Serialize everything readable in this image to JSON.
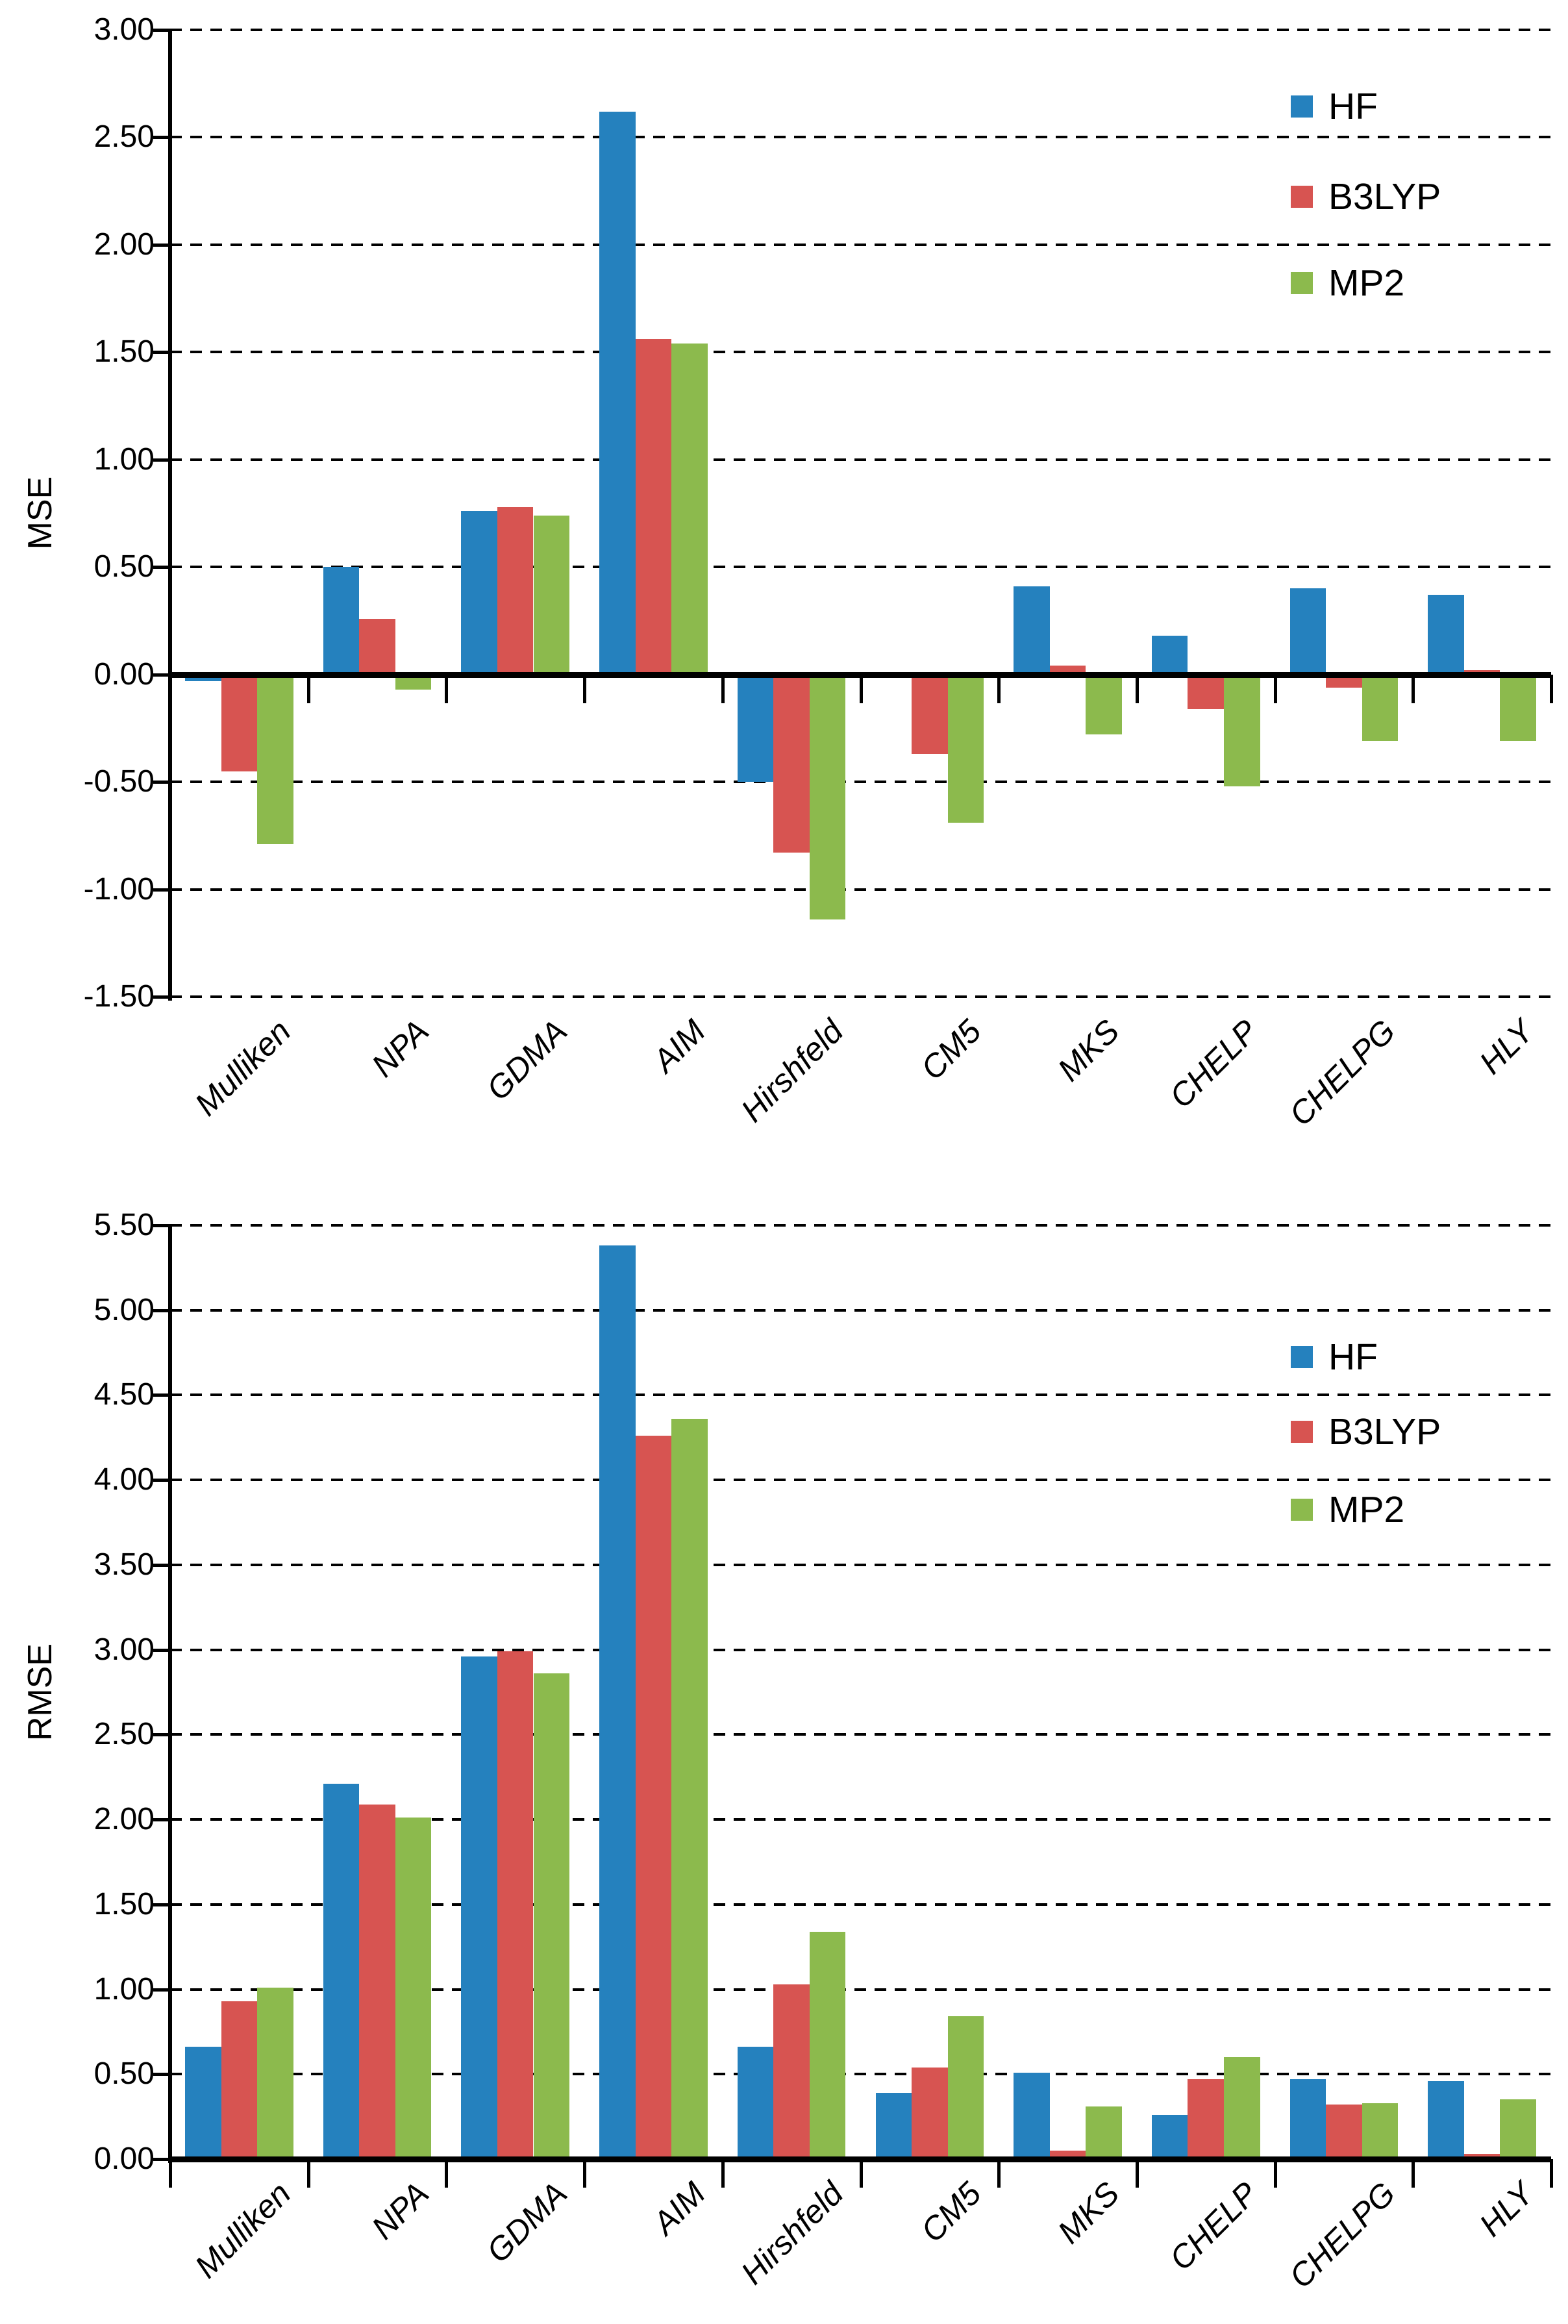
{
  "figure": {
    "background": "#FFFFFF",
    "text_color": "#000000",
    "gridline_color": "#000000"
  },
  "colors": {
    "hf": "#2581BE",
    "b3lyp": "#D75451",
    "mp2": "#8CBA4D",
    "axis": "#000000"
  },
  "chart_data": [
    {
      "type": "bar",
      "title": "",
      "xlabel": "",
      "ylabel": "MSE",
      "ylim": [
        -1.5,
        3.0
      ],
      "ytick_step": 0.5,
      "ytick_labels": [
        "3.00",
        "2.50",
        "2.00",
        "1.50",
        "1.00",
        "0.50",
        "0.00",
        "-0.50",
        "-1.00",
        "-1.50"
      ],
      "grid": true,
      "legend_position": "top-right",
      "categories": [
        "Mulliken",
        "NPA",
        "GDMA",
        "AIM",
        "Hirshfeld",
        "CM5",
        "MKS",
        "CHELP",
        "CHELPG",
        "HLY"
      ],
      "series": [
        {
          "name": "HF",
          "color": "#2581BE",
          "values": [
            -0.03,
            0.5,
            0.76,
            2.62,
            -0.5,
            -0.01,
            0.41,
            0.18,
            0.4,
            0.37
          ]
        },
        {
          "name": "B3LYP",
          "color": "#D75451",
          "values": [
            -0.45,
            0.26,
            0.78,
            1.56,
            -0.83,
            -0.37,
            0.04,
            -0.16,
            -0.06,
            0.02
          ]
        },
        {
          "name": "MP2",
          "color": "#8CBA4D",
          "values": [
            -0.79,
            -0.07,
            0.74,
            1.54,
            -1.14,
            -0.69,
            -0.28,
            -0.52,
            -0.31,
            -0.31
          ]
        }
      ]
    },
    {
      "type": "bar",
      "title": "",
      "xlabel": "",
      "ylabel": "RMSE",
      "ylim": [
        0,
        5.5
      ],
      "ytick_step": 0.5,
      "ytick_labels": [
        "5.50",
        "5.00",
        "4.50",
        "4.00",
        "3.50",
        "3.00",
        "2.50",
        "2.00",
        "1.50",
        "1.00",
        "0.50",
        "0.00"
      ],
      "grid": true,
      "legend_position": "top-right",
      "categories": [
        "Mulliken",
        "NPA",
        "GDMA",
        "AIM",
        "Hirshfeld",
        "CM5",
        "MKS",
        "CHELP",
        "CHELPG",
        "HLY"
      ],
      "series": [
        {
          "name": "HF",
          "color": "#2581BE",
          "values": [
            0.66,
            2.21,
            2.96,
            5.38,
            0.66,
            0.39,
            0.51,
            0.26,
            0.47,
            0.46
          ]
        },
        {
          "name": "B3LYP",
          "color": "#D75451",
          "values": [
            0.93,
            2.09,
            2.99,
            4.26,
            1.03,
            0.54,
            0.05,
            0.47,
            0.32,
            0.03
          ]
        },
        {
          "name": "MP2",
          "color": "#8CBA4D",
          "values": [
            1.01,
            2.01,
            2.86,
            4.36,
            1.34,
            0.84,
            0.31,
            0.6,
            0.33,
            0.35
          ]
        }
      ]
    }
  ]
}
